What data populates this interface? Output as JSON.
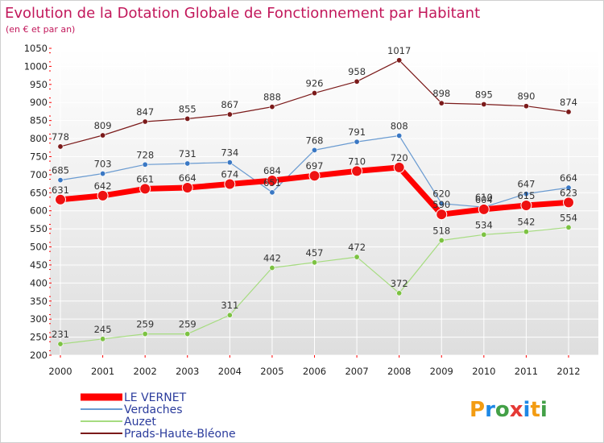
{
  "header": {
    "title": "Evolution de la Dotation Globale de Fonctionnement par Habitant",
    "subtitle": "(en € et par an)"
  },
  "brand": {
    "text": "Proxiti"
  },
  "colors": {
    "background_gradient_top": "#ffffff",
    "background_gradient_bottom": "#dedede",
    "grid": "#ffffff",
    "tick_marks": "#ff0000",
    "title": "#c2185b",
    "legend_text": "#2a3b9c"
  },
  "chart_data": {
    "type": "line",
    "title": "Evolution de la Dotation Globale de Fonctionnement par Habitant",
    "subtitle": "(en € et par an)",
    "xlabel": "",
    "ylabel": "",
    "x": [
      "2000",
      "2001",
      "2002",
      "2003",
      "2004",
      "2005",
      "2006",
      "2007",
      "2008",
      "2009",
      "2010",
      "2011",
      "2012"
    ],
    "ylim": [
      200,
      1050
    ],
    "y_ticks": [
      200,
      250,
      300,
      350,
      400,
      450,
      500,
      550,
      600,
      650,
      700,
      750,
      800,
      850,
      900,
      950,
      1000,
      1050
    ],
    "grid": true,
    "legend_position": "bottom-left",
    "series": [
      {
        "name": "Prads-Haute-Bléone",
        "color": "#7b1a1a",
        "marker": "#7b1a1a",
        "width": 1.2,
        "radius": 3.2,
        "values": [
          778,
          809,
          847,
          855,
          867,
          888,
          926,
          958,
          1017,
          898,
          895,
          890,
          874
        ],
        "labels": [
          "778",
          "809",
          "847",
          "855",
          "867",
          "888",
          "926",
          "958",
          "1017",
          "898",
          "895",
          "890",
          "874"
        ]
      },
      {
        "name": "Verdaches",
        "color": "#6a9bd1",
        "marker": "#3a78c4",
        "width": 1.2,
        "radius": 3.2,
        "values": [
          685,
          703,
          728,
          731,
          734,
          651,
          768,
          791,
          808,
          620,
          610,
          647,
          664
        ],
        "labels": [
          "685",
          "703",
          "728",
          "731",
          "734",
          "651",
          "768",
          "791",
          "808",
          "620",
          "610",
          "647",
          "664"
        ]
      },
      {
        "name": "Auzet",
        "color": "#a6dc80",
        "marker": "#7cc242",
        "width": 1.2,
        "radius": 3.2,
        "values": [
          231,
          245,
          259,
          259,
          311,
          442,
          457,
          472,
          372,
          518,
          534,
          542,
          554
        ],
        "labels": [
          "231",
          "245",
          "259",
          "259",
          "311",
          "442",
          "457",
          "472",
          "372",
          "518",
          "534",
          "542",
          "554"
        ]
      },
      {
        "name": "LE VERNET",
        "color": "#ff0000",
        "marker": "#ee1111",
        "width": 7,
        "radius": 6.5,
        "values": [
          631,
          642,
          661,
          664,
          674,
          684,
          697,
          710,
          720,
          590,
          604,
          615,
          623
        ],
        "labels": [
          "631",
          "642",
          "661",
          "664",
          "674",
          "684",
          "697",
          "710",
          "720",
          "590",
          "604",
          "615",
          "623"
        ]
      }
    ],
    "legend_order": [
      "LE VERNET",
      "Verdaches",
      "Auzet",
      "Prads-Haute-Bléone"
    ]
  }
}
